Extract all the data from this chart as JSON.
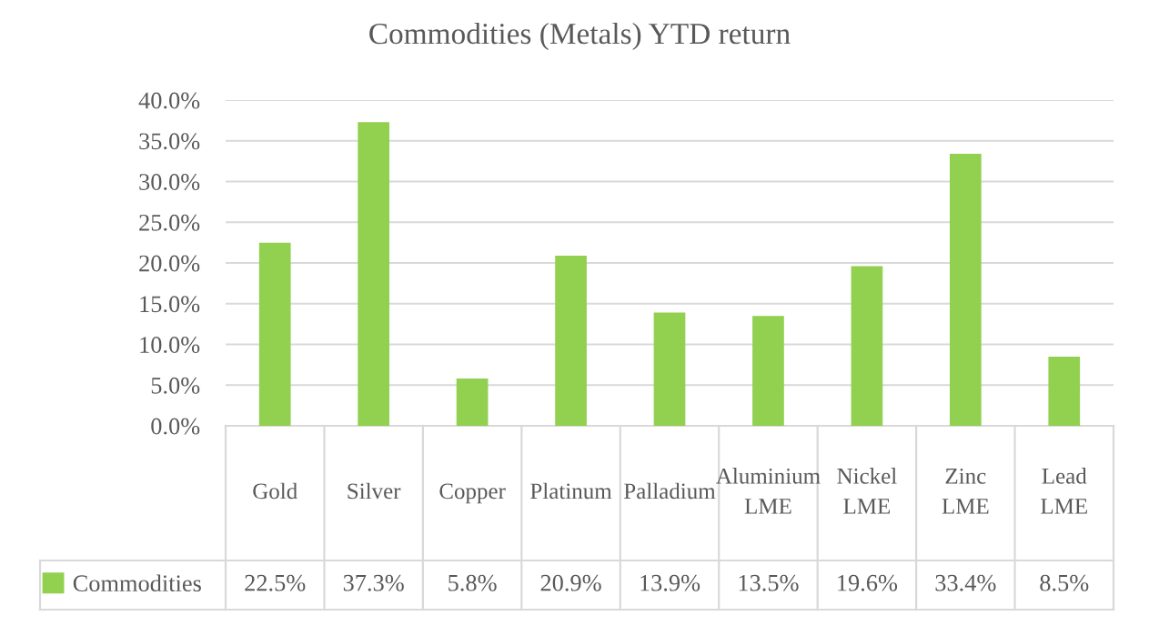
{
  "chart_data": {
    "type": "bar",
    "title": "Commodities (Metals) YTD return",
    "categories": [
      "Gold",
      "Silver",
      "Copper",
      "Platinum",
      "Palladium",
      "Aluminium LME",
      "Nickel LME",
      "Zinc LME",
      "Lead LME"
    ],
    "series": [
      {
        "name": "Commodities",
        "color": "#92d050",
        "values": [
          22.5,
          37.3,
          5.8,
          20.9,
          13.9,
          13.5,
          19.6,
          33.4,
          8.5
        ],
        "value_labels": [
          "22.5%",
          "37.3%",
          "5.8%",
          "20.9%",
          "13.9%",
          "13.5%",
          "19.6%",
          "33.4%",
          "8.5%"
        ]
      }
    ],
    "ylim": [
      0,
      40
    ],
    "yticks": [
      {
        "value": 0,
        "label": "0.0%"
      },
      {
        "value": 5,
        "label": "5.0%"
      },
      {
        "value": 10,
        "label": "10.0%"
      },
      {
        "value": 15,
        "label": "15.0%"
      },
      {
        "value": 20,
        "label": "20.0%"
      },
      {
        "value": 25,
        "label": "25.0%"
      },
      {
        "value": 30,
        "label": "30.0%"
      },
      {
        "value": 35,
        "label": "35.0%"
      },
      {
        "value": 40,
        "label": "40.0%"
      }
    ],
    "grid": "y",
    "legend": "bottom"
  }
}
